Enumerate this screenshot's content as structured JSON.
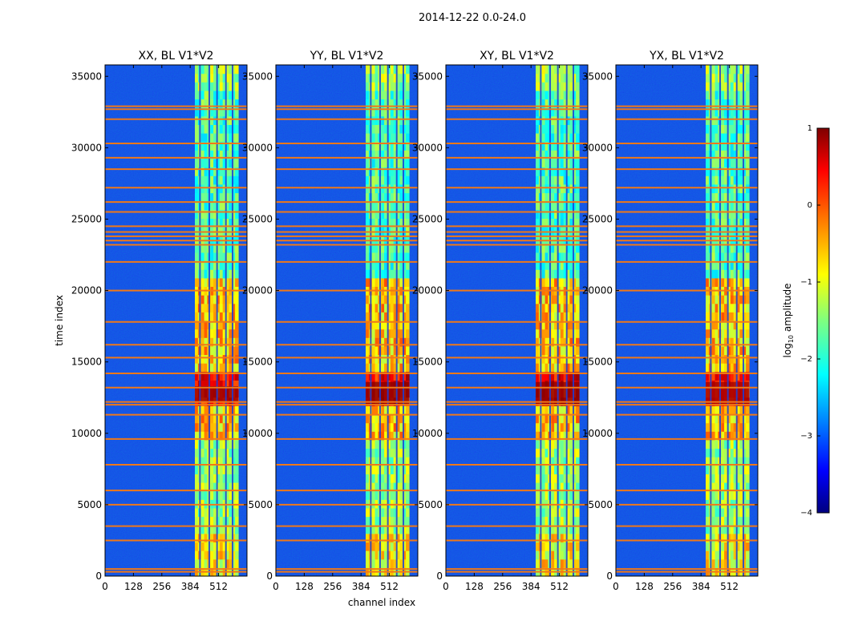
{
  "chart_data": {
    "type": "heatmap",
    "suptitle": "2014-12-22 0.0-24.0",
    "xlabel": "channel index",
    "ylabel": "time index",
    "x_ticks": [
      0,
      128,
      256,
      384,
      512
    ],
    "x_tick_labels": [
      "0",
      "128",
      "256",
      "384",
      "512"
    ],
    "y_ticks": [
      0,
      5000,
      10000,
      15000,
      20000,
      25000,
      30000,
      35000
    ],
    "y_tick_labels": [
      "0",
      "5000",
      "10000",
      "15000",
      "20000",
      "25000",
      "30000",
      "35000"
    ],
    "xlim": [
      0,
      640
    ],
    "ylim": [
      0,
      35800
    ],
    "panels": [
      {
        "title": "XX, BL V1*V2",
        "strong_band": [
          12500,
          13000
        ],
        "strength": 0.85
      },
      {
        "title": "YY, BL V1*V2",
        "strong_band": [
          12300,
          13300
        ],
        "strength": 1.0
      },
      {
        "title": "XY, BL V1*V2",
        "strong_band": [
          12300,
          13300
        ],
        "strength": 0.95
      },
      {
        "title": "YX, BL V1*V2",
        "strong_band": [
          12300,
          13300
        ],
        "strength": 0.75
      }
    ],
    "bright_channel_range": [
      405,
      600
    ],
    "bright_columns": [
      428,
      470,
      505,
      545,
      575
    ],
    "flagged_rows": [
      300,
      500,
      2500,
      3500,
      5000,
      6000,
      7800,
      9600,
      11300,
      12000,
      12200,
      13200,
      14200,
      15300,
      16200,
      17800,
      20000,
      22000,
      23200,
      23500,
      23800,
      24100,
      24500,
      25500,
      26200,
      27200,
      28500,
      29300,
      30300,
      32000,
      32700,
      32900
    ],
    "colorbar": {
      "label": "log10 amplitude",
      "ticks": [
        1,
        0,
        -1,
        -2,
        -3,
        -4
      ],
      "tick_labels": [
        "1",
        "0",
        "−1",
        "−2",
        "−3",
        "−4"
      ],
      "range": [
        -4,
        1
      ],
      "colormap": "jet"
    }
  }
}
